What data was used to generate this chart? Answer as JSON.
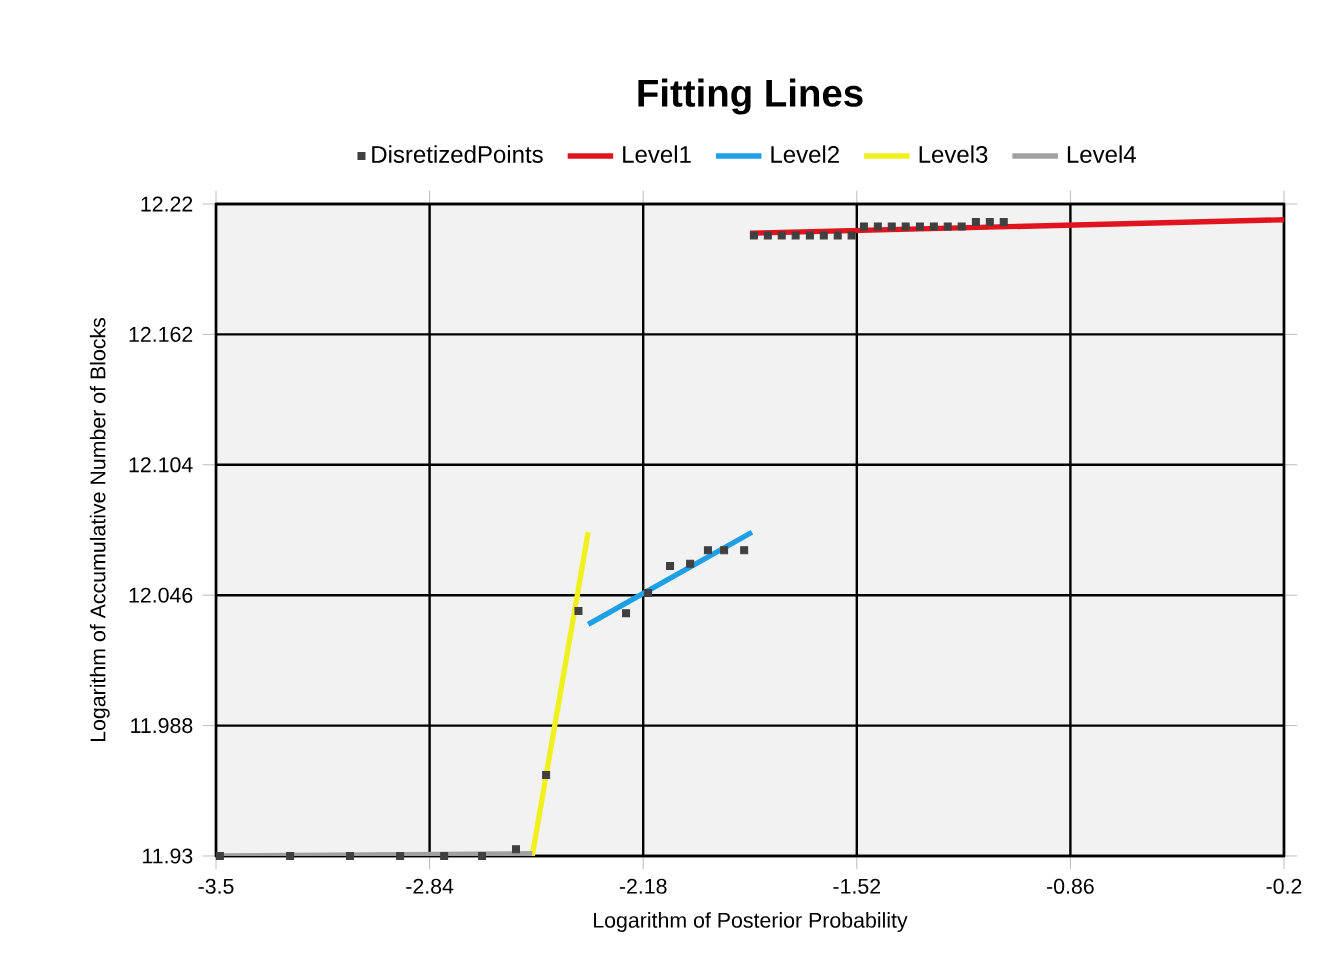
{
  "chart_data": {
    "type": "line",
    "title": "Fitting Lines",
    "xlabel": "Logarithm of Posterior Probability",
    "ylabel": "Logarithm of Accumulative Number of Blocks",
    "xlim": [
      -3.5,
      -0.2
    ],
    "xticks": [
      -3.5,
      -2.84,
      -2.18,
      -1.52,
      -0.86,
      -0.2
    ],
    "ylim": [
      11.93,
      12.22
    ],
    "yticks": [
      11.93,
      11.988,
      12.046,
      12.104,
      12.162,
      12.22
    ],
    "grid": true,
    "legend": "top",
    "series": [
      {
        "name": "DisretizedPoints",
        "type": "scatter",
        "marker": "square",
        "color": "#404040",
        "x": [
          -3.488,
          -3.271,
          -3.086,
          -2.931,
          -2.795,
          -2.678,
          -2.573,
          -2.48,
          -2.38,
          -2.233,
          -2.165,
          -2.097,
          -2.035,
          -1.98,
          -1.93,
          -1.868,
          -1.838,
          -1.795,
          -1.752,
          -1.709,
          -1.665,
          -1.622,
          -1.579,
          -1.536,
          -1.498,
          -1.455,
          -1.412,
          -1.369,
          -1.325,
          -1.282,
          -1.239,
          -1.196,
          -1.152,
          -1.109,
          -1.066
        ],
        "values": [
          11.93,
          11.93,
          11.93,
          11.93,
          11.93,
          11.93,
          11.933,
          11.966,
          12.039,
          12.038,
          12.047,
          12.059,
          12.06,
          12.066,
          12.066,
          12.066,
          12.206,
          12.206,
          12.206,
          12.206,
          12.206,
          12.206,
          12.206,
          12.206,
          12.21,
          12.21,
          12.21,
          12.21,
          12.21,
          12.21,
          12.21,
          12.21,
          12.212,
          12.212,
          12.212
        ]
      },
      {
        "name": "Level1",
        "marker": "none",
        "color": "#e0141e",
        "x": [
          -1.85,
          -0.2
        ],
        "values": [
          12.207,
          12.213
        ]
      },
      {
        "name": "Level2",
        "marker": "none",
        "color": "#1ea0e6",
        "x": [
          -2.35,
          -1.844
        ],
        "values": [
          12.033,
          12.074
        ]
      },
      {
        "name": "Level3",
        "marker": "none",
        "color": "#f0f01e",
        "x": [
          -2.523,
          -2.35
        ],
        "values": [
          11.93,
          12.074
        ]
      },
      {
        "name": "Level4",
        "marker": "none",
        "color": "#a0a0a0",
        "x": [
          -3.5,
          -2.523
        ],
        "values": [
          11.93,
          11.931
        ]
      }
    ]
  }
}
